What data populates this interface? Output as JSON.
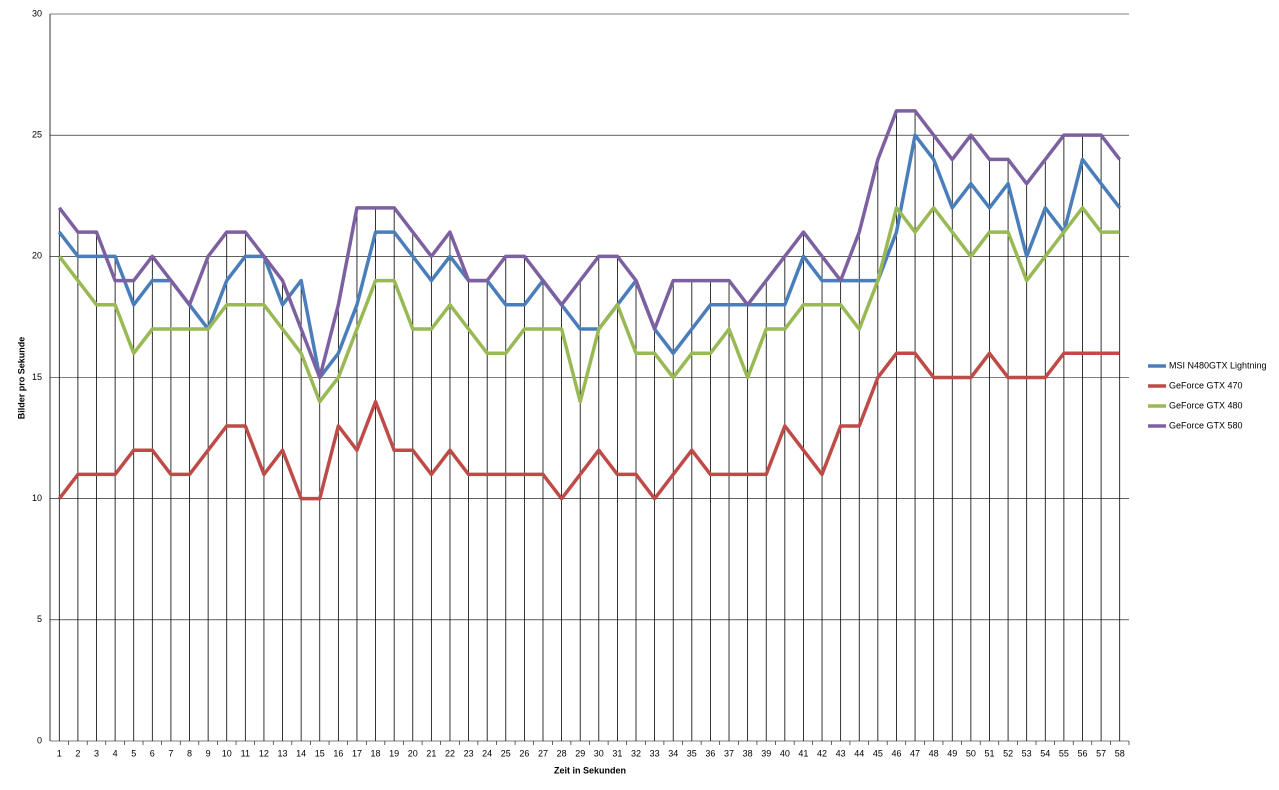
{
  "chart_data": {
    "type": "line",
    "x_label": "Zeit in Sekunden",
    "y_label": "Bilder pro Sekunde",
    "categories": [
      "1",
      "2",
      "3",
      "4",
      "5",
      "6",
      "7",
      "8",
      "9",
      "10",
      "11",
      "12",
      "13",
      "14",
      "15",
      "16",
      "17",
      "18",
      "19",
      "20",
      "21",
      "22",
      "23",
      "24",
      "25",
      "26",
      "27",
      "28",
      "29",
      "30",
      "31",
      "32",
      "33",
      "34",
      "35",
      "36",
      "37",
      "38",
      "39",
      "40",
      "41",
      "42",
      "43",
      "44",
      "45",
      "46",
      "47",
      "48",
      "49",
      "50",
      "51",
      "52",
      "53",
      "54",
      "55",
      "56",
      "57",
      "58"
    ],
    "series": [
      {
        "name": "MSI N480GTX Lightning",
        "color": "#4a7ebb",
        "values": [
          21,
          20,
          20,
          20,
          18,
          19,
          19,
          18,
          17,
          19,
          20,
          20,
          18,
          19,
          15,
          16,
          18,
          21,
          21,
          20,
          19,
          20,
          19,
          19,
          18,
          18,
          19,
          18,
          17,
          17,
          18,
          19,
          17,
          16,
          17,
          18,
          18,
          18,
          18,
          18,
          20,
          19,
          19,
          19,
          19,
          21,
          25,
          24,
          22,
          23,
          22,
          23,
          20,
          22,
          21,
          24,
          23,
          22
        ]
      },
      {
        "name": "GeForce GTX 470",
        "color": "#be4b48",
        "values": [
          10,
          11,
          11,
          11,
          12,
          12,
          11,
          11,
          12,
          13,
          13,
          11,
          12,
          10,
          10,
          13,
          12,
          14,
          12,
          12,
          11,
          12,
          11,
          11,
          11,
          11,
          11,
          10,
          11,
          12,
          11,
          11,
          10,
          11,
          12,
          11,
          11,
          11,
          11,
          13,
          12,
          11,
          13,
          13,
          15,
          16,
          16,
          15,
          15,
          15,
          16,
          15,
          15,
          15,
          16,
          16,
          16,
          16
        ]
      },
      {
        "name": "GeForce GTX 480",
        "color": "#98b954",
        "values": [
          20,
          19,
          18,
          18,
          16,
          17,
          17,
          17,
          17,
          18,
          18,
          18,
          17,
          16,
          14,
          15,
          17,
          19,
          19,
          17,
          17,
          18,
          17,
          16,
          16,
          17,
          17,
          17,
          14,
          17,
          18,
          16,
          16,
          15,
          16,
          16,
          17,
          15,
          17,
          17,
          18,
          18,
          18,
          17,
          19,
          22,
          21,
          22,
          21,
          20,
          21,
          21,
          19,
          20,
          21,
          22,
          21,
          21
        ]
      },
      {
        "name": "GeForce GTX 580",
        "color": "#7d60a0",
        "values": [
          22,
          21,
          21,
          19,
          19,
          20,
          19,
          18,
          20,
          21,
          21,
          20,
          19,
          17,
          15,
          18,
          22,
          22,
          22,
          21,
          20,
          21,
          19,
          19,
          20,
          20,
          19,
          18,
          19,
          20,
          20,
          19,
          17,
          19,
          19,
          19,
          19,
          18,
          19,
          20,
          21,
          20,
          19,
          21,
          24,
          26,
          26,
          25,
          24,
          25,
          24,
          24,
          23,
          24,
          25,
          25,
          25,
          24
        ]
      }
    ],
    "ylim": [
      0,
      30
    ],
    "yticks": [
      0,
      5,
      10,
      15,
      20,
      25,
      30
    ],
    "grid": true,
    "drop_lines": true,
    "legend": "right"
  }
}
